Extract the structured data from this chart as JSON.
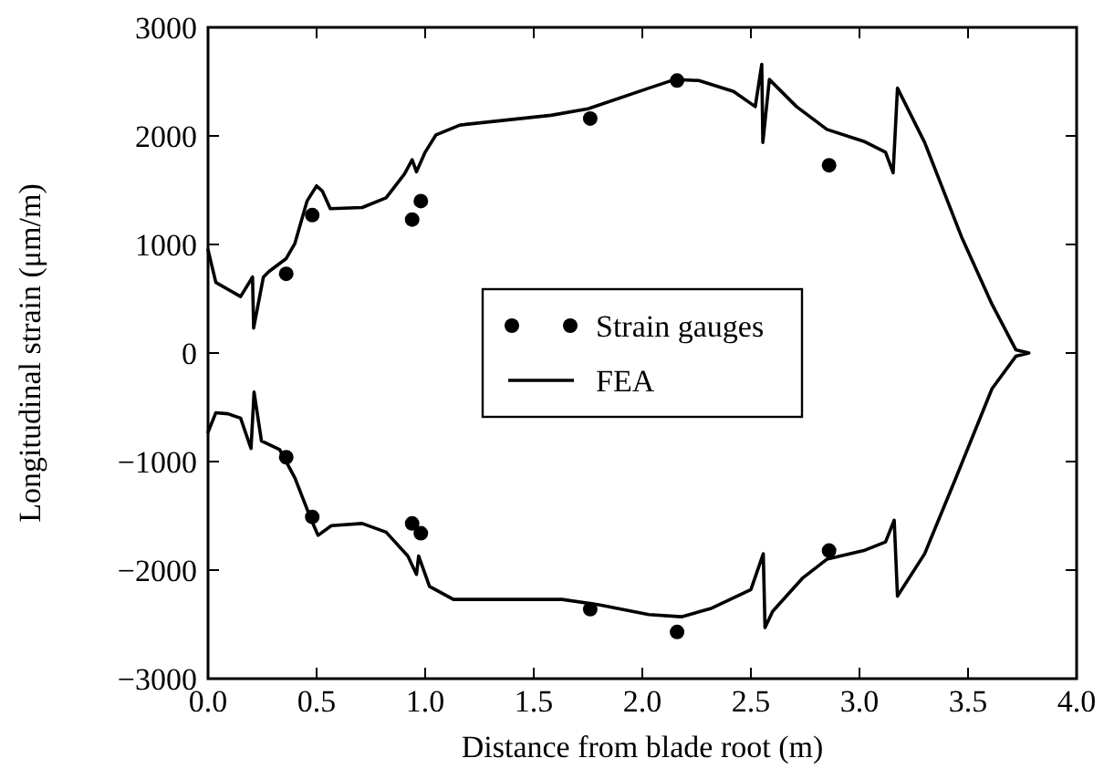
{
  "chart_data": {
    "type": "scatter",
    "xlabel": "Distance from blade root (m)",
    "ylabel": "Longitudinal strain (μm/m)",
    "xlim": [
      0,
      4
    ],
    "ylim": [
      -3000,
      3000
    ],
    "xticks": [
      {
        "value": 0,
        "label": "0.0"
      },
      {
        "value": 0.5,
        "label": "0.5"
      },
      {
        "value": 1,
        "label": "1.0"
      },
      {
        "value": 1.5,
        "label": "1.5"
      },
      {
        "value": 2,
        "label": "2.0"
      },
      {
        "value": 2.5,
        "label": "2.5"
      },
      {
        "value": 3,
        "label": "3.0"
      },
      {
        "value": 3.5,
        "label": "3.5"
      },
      {
        "value": 4,
        "label": "4.0"
      }
    ],
    "yticks": [
      {
        "value": -3000,
        "label": "−3000"
      },
      {
        "value": -2000,
        "label": "−2000"
      },
      {
        "value": -1000,
        "label": "−1000"
      },
      0,
      1000,
      2000,
      3000
    ],
    "grid": false,
    "legend": "center",
    "series": [
      {
        "name": "Strain gauges",
        "marker": "circle",
        "color": "#000000",
        "x": [
          0.36,
          0.48,
          0.94,
          0.98,
          1.76,
          2.16,
          2.86,
          0.36,
          0.48,
          0.94,
          0.98,
          1.76,
          2.16,
          2.86
        ],
        "values": [
          730,
          1270,
          1230,
          1400,
          2160,
          2510,
          1730,
          -960,
          -1510,
          -1570,
          -1660,
          -2360,
          -2570,
          -1820
        ]
      },
      {
        "name": "FEA",
        "type": "line",
        "marker": "none",
        "line_style": "solid",
        "color": "#000000",
        "x": [
          0,
          0.036,
          0.15,
          0.205,
          0.21,
          0.255,
          0.28,
          0.36,
          0.4,
          0.456,
          0.5,
          0.527,
          0.563,
          0.71,
          0.82,
          0.905,
          0.94,
          0.96,
          1.0,
          1.05,
          1.16,
          1.58,
          1.75,
          2.03,
          2.15,
          2.26,
          2.42,
          2.52,
          2.55,
          2.555,
          2.585,
          2.71,
          2.85,
          3.02,
          3.12,
          3.155,
          3.175,
          3.3,
          3.47,
          3.61,
          3.72,
          3.78,
          3.72,
          3.61,
          3.44,
          3.3,
          3.175,
          3.16,
          3.12,
          3.02,
          2.85,
          2.74,
          2.6,
          2.565,
          2.557,
          2.5,
          2.32,
          2.18,
          2.03,
          1.8,
          1.63,
          1.13,
          1.02,
          0.97,
          0.96,
          0.92,
          0.82,
          0.71,
          0.568,
          0.507,
          0.47,
          0.4,
          0.33,
          0.246,
          0.212,
          0.198,
          0.15,
          0.092,
          0.036,
          0
        ],
        "values": [
          950,
          650,
          520,
          700,
          230,
          700,
          750,
          870,
          1010,
          1400,
          1540,
          1490,
          1330,
          1340,
          1430,
          1650,
          1780,
          1670,
          1850,
          2010,
          2100,
          2190,
          2250,
          2440,
          2520,
          2510,
          2410,
          2270,
          2660,
          1940,
          2520,
          2270,
          2060,
          1950,
          1850,
          1660,
          2440,
          1940,
          1070,
          450,
          30,
          0,
          -30,
          -330,
          -1170,
          -1850,
          -2240,
          -1540,
          -1740,
          -1820,
          -1900,
          -2070,
          -2380,
          -2530,
          -1850,
          -2180,
          -2350,
          -2430,
          -2410,
          -2320,
          -2270,
          -2270,
          -2150,
          -1870,
          -2040,
          -1870,
          -1650,
          -1570,
          -1590,
          -1680,
          -1510,
          -1150,
          -890,
          -810,
          -360,
          -880,
          -600,
          -560,
          -550,
          -730
        ]
      }
    ]
  }
}
